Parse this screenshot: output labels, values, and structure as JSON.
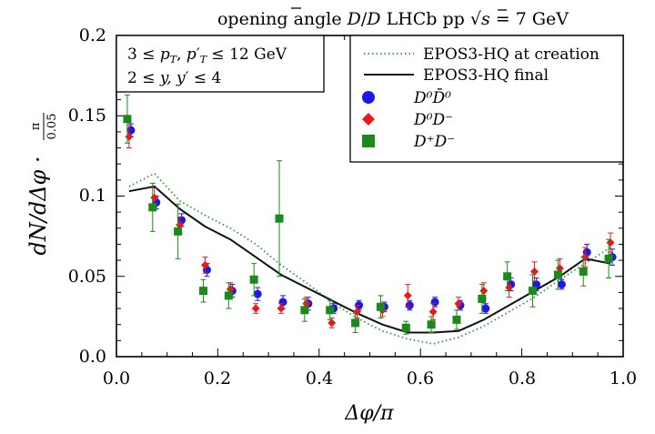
{
  "title": {
    "lead": "opening angle ",
    "D": "D",
    "slash": "/",
    "Dbar": "D",
    "experiment": " LHCb  pp ",
    "sqrt": "√",
    "s": "s",
    "energy": " = 7 GeV"
  },
  "cuts": {
    "pt_lead": "3 ≤ ",
    "pt_var1": "p",
    "pt_sub1": "T",
    "pt_comma": ", ",
    "pt_var2": "p",
    "pt_prime": "′",
    "pt_sub2": "T",
    "pt_tail": " ≤  12 GeV",
    "y_lead": "2 ≤ ",
    "y_var": "y, y′",
    "y_tail": " ≤  4"
  },
  "axes": {
    "xlabel": "Δφ/π",
    "ylabel": "dN/dΔφ · ",
    "ylabel_frac_num": "π",
    "ylabel_frac_den": "0.05",
    "xticks": [
      "0.0",
      "0.2",
      "0.4",
      "0.6",
      "0.8",
      "1.0"
    ],
    "yticks": [
      "0.0",
      "0.05",
      "0.1",
      "0.15",
      "0.2"
    ]
  },
  "legend": {
    "creation": "EPOS3-HQ at creation",
    "final": "EPOS3-HQ final",
    "d0d0bar": "D⁰D̄⁰",
    "d0dm": "D⁰D⁻",
    "dpdm": "D⁺D⁻"
  },
  "colors": {
    "blue": "#1a1ae6",
    "red": "#e61a1a",
    "green": "#1a8a1a",
    "curve_creation": "#2e9a2e",
    "curve_final": "#111111"
  },
  "chart_data": {
    "type": "scatter",
    "xlim": [
      0,
      1
    ],
    "ylim": [
      0,
      0.2
    ],
    "grid": false,
    "legend_position": "top-right",
    "series": [
      {
        "name": "D⁰D̄⁰",
        "marker": "circle",
        "color": "#1a1ae6",
        "x": [
          0.025,
          0.075,
          0.125,
          0.175,
          0.225,
          0.275,
          0.325,
          0.375,
          0.425,
          0.475,
          0.525,
          0.575,
          0.625,
          0.675,
          0.725,
          0.775,
          0.825,
          0.875,
          0.925,
          0.975
        ],
        "y": [
          0.141,
          0.096,
          0.085,
          0.054,
          0.041,
          0.039,
          0.034,
          0.033,
          0.03,
          0.032,
          0.031,
          0.032,
          0.034,
          0.032,
          0.03,
          0.045,
          0.045,
          0.045,
          0.065,
          0.062
        ],
        "err": [
          0.004,
          0.004,
          0.004,
          0.004,
          0.004,
          0.004,
          0.004,
          0.004,
          0.003,
          0.003,
          0.003,
          0.003,
          0.003,
          0.003,
          0.003,
          0.004,
          0.004,
          0.003,
          0.005,
          0.005
        ]
      },
      {
        "name": "D⁰D⁻",
        "marker": "diamond",
        "color": "#e61a1a",
        "x": [
          0.025,
          0.075,
          0.125,
          0.175,
          0.225,
          0.275,
          0.325,
          0.375,
          0.425,
          0.475,
          0.525,
          0.575,
          0.625,
          0.675,
          0.725,
          0.775,
          0.825,
          0.875,
          0.925,
          0.975
        ],
        "y": [
          0.137,
          0.099,
          0.082,
          0.057,
          0.042,
          0.03,
          0.03,
          0.033,
          0.021,
          0.028,
          0.029,
          0.038,
          0.028,
          0.033,
          0.041,
          0.043,
          0.053,
          0.055,
          0.062,
          0.071
        ],
        "err": [
          0.007,
          0.006,
          0.005,
          0.005,
          0.004,
          0.003,
          0.003,
          0.004,
          0.003,
          0.004,
          0.004,
          0.007,
          0.005,
          0.004,
          0.005,
          0.006,
          0.006,
          0.006,
          0.006,
          0.006
        ]
      },
      {
        "name": "D⁺D⁻",
        "marker": "square",
        "color": "#1a8a1a",
        "x": [
          0.025,
          0.075,
          0.125,
          0.175,
          0.225,
          0.275,
          0.325,
          0.375,
          0.425,
          0.475,
          0.525,
          0.575,
          0.625,
          0.675,
          0.725,
          0.775,
          0.825,
          0.875,
          0.925,
          0.975
        ],
        "y": [
          0.148,
          0.093,
          0.078,
          0.041,
          0.038,
          0.048,
          0.086,
          0.029,
          0.029,
          0.021,
          0.031,
          0.018,
          0.02,
          0.023,
          0.036,
          0.05,
          0.041,
          0.051,
          0.053,
          0.061
        ],
        "err": [
          0.015,
          0.015,
          0.017,
          0.007,
          0.008,
          0.01,
          0.036,
          0.007,
          0.006,
          0.006,
          0.007,
          0.004,
          0.005,
          0.006,
          0.009,
          0.009,
          0.01,
          0.009,
          0.009,
          0.012
        ]
      },
      {
        "name": "EPOS3-HQ at creation",
        "kind": "dotted-line",
        "color": "#2e9a2e",
        "x": [
          0.025,
          0.075,
          0.125,
          0.175,
          0.225,
          0.275,
          0.325,
          0.375,
          0.425,
          0.475,
          0.525,
          0.575,
          0.625,
          0.675,
          0.725,
          0.775,
          0.825,
          0.875,
          0.925,
          0.975
        ],
        "y": [
          0.106,
          0.114,
          0.097,
          0.088,
          0.08,
          0.07,
          0.057,
          0.046,
          0.034,
          0.024,
          0.016,
          0.011,
          0.008,
          0.012,
          0.019,
          0.028,
          0.037,
          0.048,
          0.058,
          0.068
        ]
      },
      {
        "name": "EPOS3-HQ final",
        "kind": "line",
        "color": "#111111",
        "x": [
          0.025,
          0.075,
          0.125,
          0.175,
          0.225,
          0.275,
          0.325,
          0.375,
          0.425,
          0.475,
          0.525,
          0.575,
          0.625,
          0.675,
          0.725,
          0.775,
          0.825,
          0.875,
          0.925,
          0.975
        ],
        "y": [
          0.103,
          0.106,
          0.092,
          0.081,
          0.073,
          0.062,
          0.051,
          0.043,
          0.035,
          0.027,
          0.02,
          0.015,
          0.015,
          0.016,
          0.023,
          0.032,
          0.041,
          0.05,
          0.061,
          0.058
        ]
      }
    ]
  }
}
